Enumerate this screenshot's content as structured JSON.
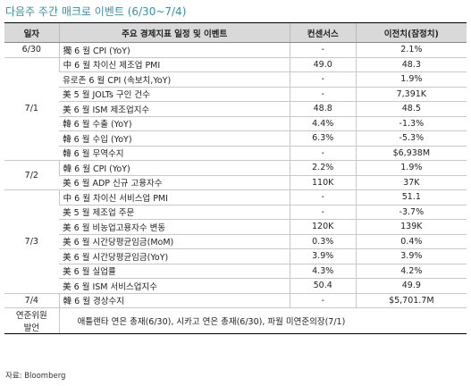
{
  "header": {
    "title": "다음주 주간 매크로 이벤트 (6/30~7/4)"
  },
  "table": {
    "columns": [
      "일자",
      "주요 경제지표 일정 및 이벤트",
      "컨센서스",
      "이전치(잠정치)"
    ],
    "groups": [
      {
        "date": "6/30",
        "rows": [
          [
            "獨 6 월 CPI (YoY)",
            "-",
            "2.1%"
          ]
        ]
      },
      {
        "date": "7/1",
        "rows": [
          [
            "中 6 월 차이신 제조업 PMI",
            "49.0",
            "48.3"
          ],
          [
            "유로존 6 월 CPI (속보치,YoY)",
            "-",
            "1.9%"
          ],
          [
            "美 5 월 JOLTs 구인 건수",
            "-",
            "7,391K"
          ],
          [
            "美 6 월 ISM 제조업지수",
            "48.8",
            "48.5"
          ],
          [
            "韓 6 월 수출 (YoY)",
            "4.4%",
            "-1.3%"
          ],
          [
            "韓 6 월 수입 (YoY)",
            "6.3%",
            "-5.3%"
          ],
          [
            "韓 6 월 무역수지",
            "-",
            "$6,938M"
          ]
        ]
      },
      {
        "date": "7/2",
        "rows": [
          [
            "韓 6 월 CPI (YoY)",
            "2.2%",
            "1.9%"
          ],
          [
            "美 6 월 ADP 신규 고용자수",
            "110K",
            "37K"
          ]
        ]
      },
      {
        "date": "7/3",
        "rows": [
          [
            "中 6 월 차이신 서비스업 PMI",
            "-",
            "51.1"
          ],
          [
            "美 5 월 제조업 주문",
            "-",
            "-3.7%"
          ],
          [
            "美 6 월 비농업고용자수 변동",
            "120K",
            "139K"
          ],
          [
            "美 6 월 시간당평균임금(MoM)",
            "0.3%",
            "0.4%"
          ],
          [
            "美 6 월 시간당평균임금(YoY)",
            "3.9%",
            "3.9%"
          ],
          [
            "美 6 월 실업률",
            "4.3%",
            "4.2%"
          ],
          [
            "美 6 월 ISM 서비스업지수",
            "50.4",
            "49.9"
          ]
        ]
      },
      {
        "date": "7/4",
        "rows": [
          [
            "韓 6 월 경상수지",
            "-",
            "$5,701.7M"
          ]
        ]
      }
    ],
    "speakers": {
      "label": [
        "연준위원",
        "발언"
      ],
      "text": "애틀랜타 연은 총재(6/30), 시카고 연은 총재(6/30), 파월 미연준의장(7/1)"
    }
  },
  "footer": {
    "source": "자료: Bloomberg"
  }
}
